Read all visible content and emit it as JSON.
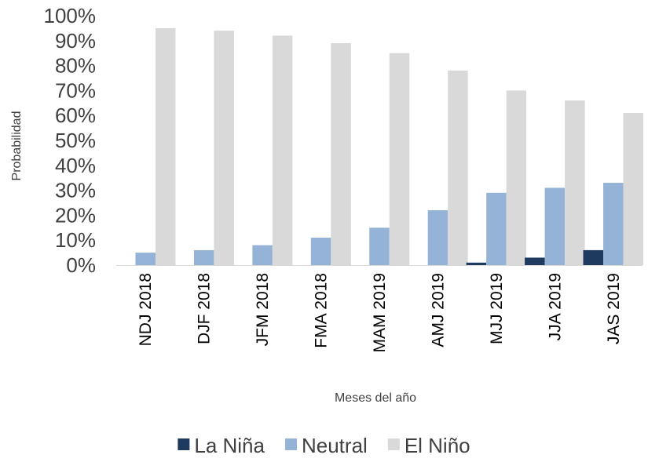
{
  "chart_data": {
    "type": "bar",
    "categories": [
      "NDJ 2018",
      "DJF 2018",
      "JFM 2018",
      "FMA 2018",
      "MAM 2019",
      "AMJ 2019",
      "MJJ 2019",
      "JJA 2019",
      "JAS 2019"
    ],
    "series": [
      {
        "name": "La Niña",
        "color": "#1f3a5f",
        "values": [
          0,
          0,
          0,
          0,
          0,
          0,
          1,
          3,
          6
        ]
      },
      {
        "name": "Neutral",
        "color": "#95b3d7",
        "values": [
          5,
          6,
          8,
          11,
          15,
          22,
          29,
          31,
          33
        ]
      },
      {
        "name": "El Niño",
        "color": "#d9d9d9",
        "values": [
          95,
          94,
          92,
          89,
          85,
          78,
          70,
          66,
          61
        ]
      }
    ],
    "xlabel": "Meses del año",
    "ylabel": "Probabilidad",
    "ylim": [
      0,
      100
    ],
    "yticks": [
      "0%",
      "10%",
      "20%",
      "30%",
      "40%",
      "50%",
      "60%",
      "70%",
      "80%",
      "90%",
      "100%"
    ],
    "grid": false,
    "legend_position": "bottom"
  }
}
